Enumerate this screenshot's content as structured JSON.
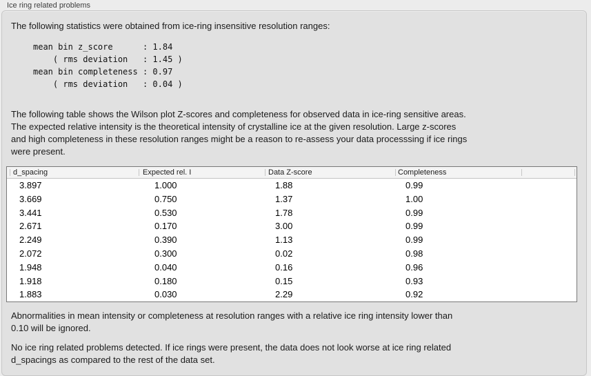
{
  "panel": {
    "title": "Ice ring related problems"
  },
  "intro": "The following statistics were obtained from ice-ring insensitive resolution ranges:",
  "stats_block": "mean bin z_score      : 1.84\n    ( rms deviation   : 1.45 )\nmean bin completeness : 0.97\n    ( rms deviation   : 0.04 )",
  "stats": {
    "mean_bin_z_score": "1.84",
    "z_score_rms_deviation": "1.45",
    "mean_bin_completeness": "0.97",
    "completeness_rms_deviation": "0.04"
  },
  "table_description": "The following table shows the Wilson plot Z-scores and completeness for observed data in ice-ring sensitive areas.\nThe expected relative intensity is the theoretical intensity of crystalline ice at the given resolution. Large z-scores\nand high completeness in these resolution ranges might be a reason to re-assess your data processsing if ice rings\nwere present.",
  "table": {
    "columns": [
      "d_spacing",
      "Expected rel. I",
      "Data Z-score",
      "Completeness",
      ""
    ],
    "rows": [
      [
        "3.897",
        "1.000",
        "1.88",
        "0.99"
      ],
      [
        "3.669",
        "0.750",
        "1.37",
        "1.00"
      ],
      [
        "3.441",
        "0.530",
        "1.78",
        "0.99"
      ],
      [
        "2.671",
        "0.170",
        "3.00",
        "0.99"
      ],
      [
        "2.249",
        "0.390",
        "1.13",
        "0.99"
      ],
      [
        "2.072",
        "0.300",
        "0.02",
        "0.98"
      ],
      [
        "1.948",
        "0.040",
        "0.16",
        "0.96"
      ],
      [
        "1.918",
        "0.180",
        "0.15",
        "0.93"
      ],
      [
        "1.883",
        "0.030",
        "2.29",
        "0.92"
      ]
    ]
  },
  "ignore_note": "Abnormalities in mean intensity or completeness at resolution ranges with a relative ice ring intensity lower than\n0.10 will be ignored.",
  "conclusion": "No ice ring related problems detected. If ice rings were present, the data does not look worse at ice ring related\nd_spacings as compared to the rest of the data set."
}
